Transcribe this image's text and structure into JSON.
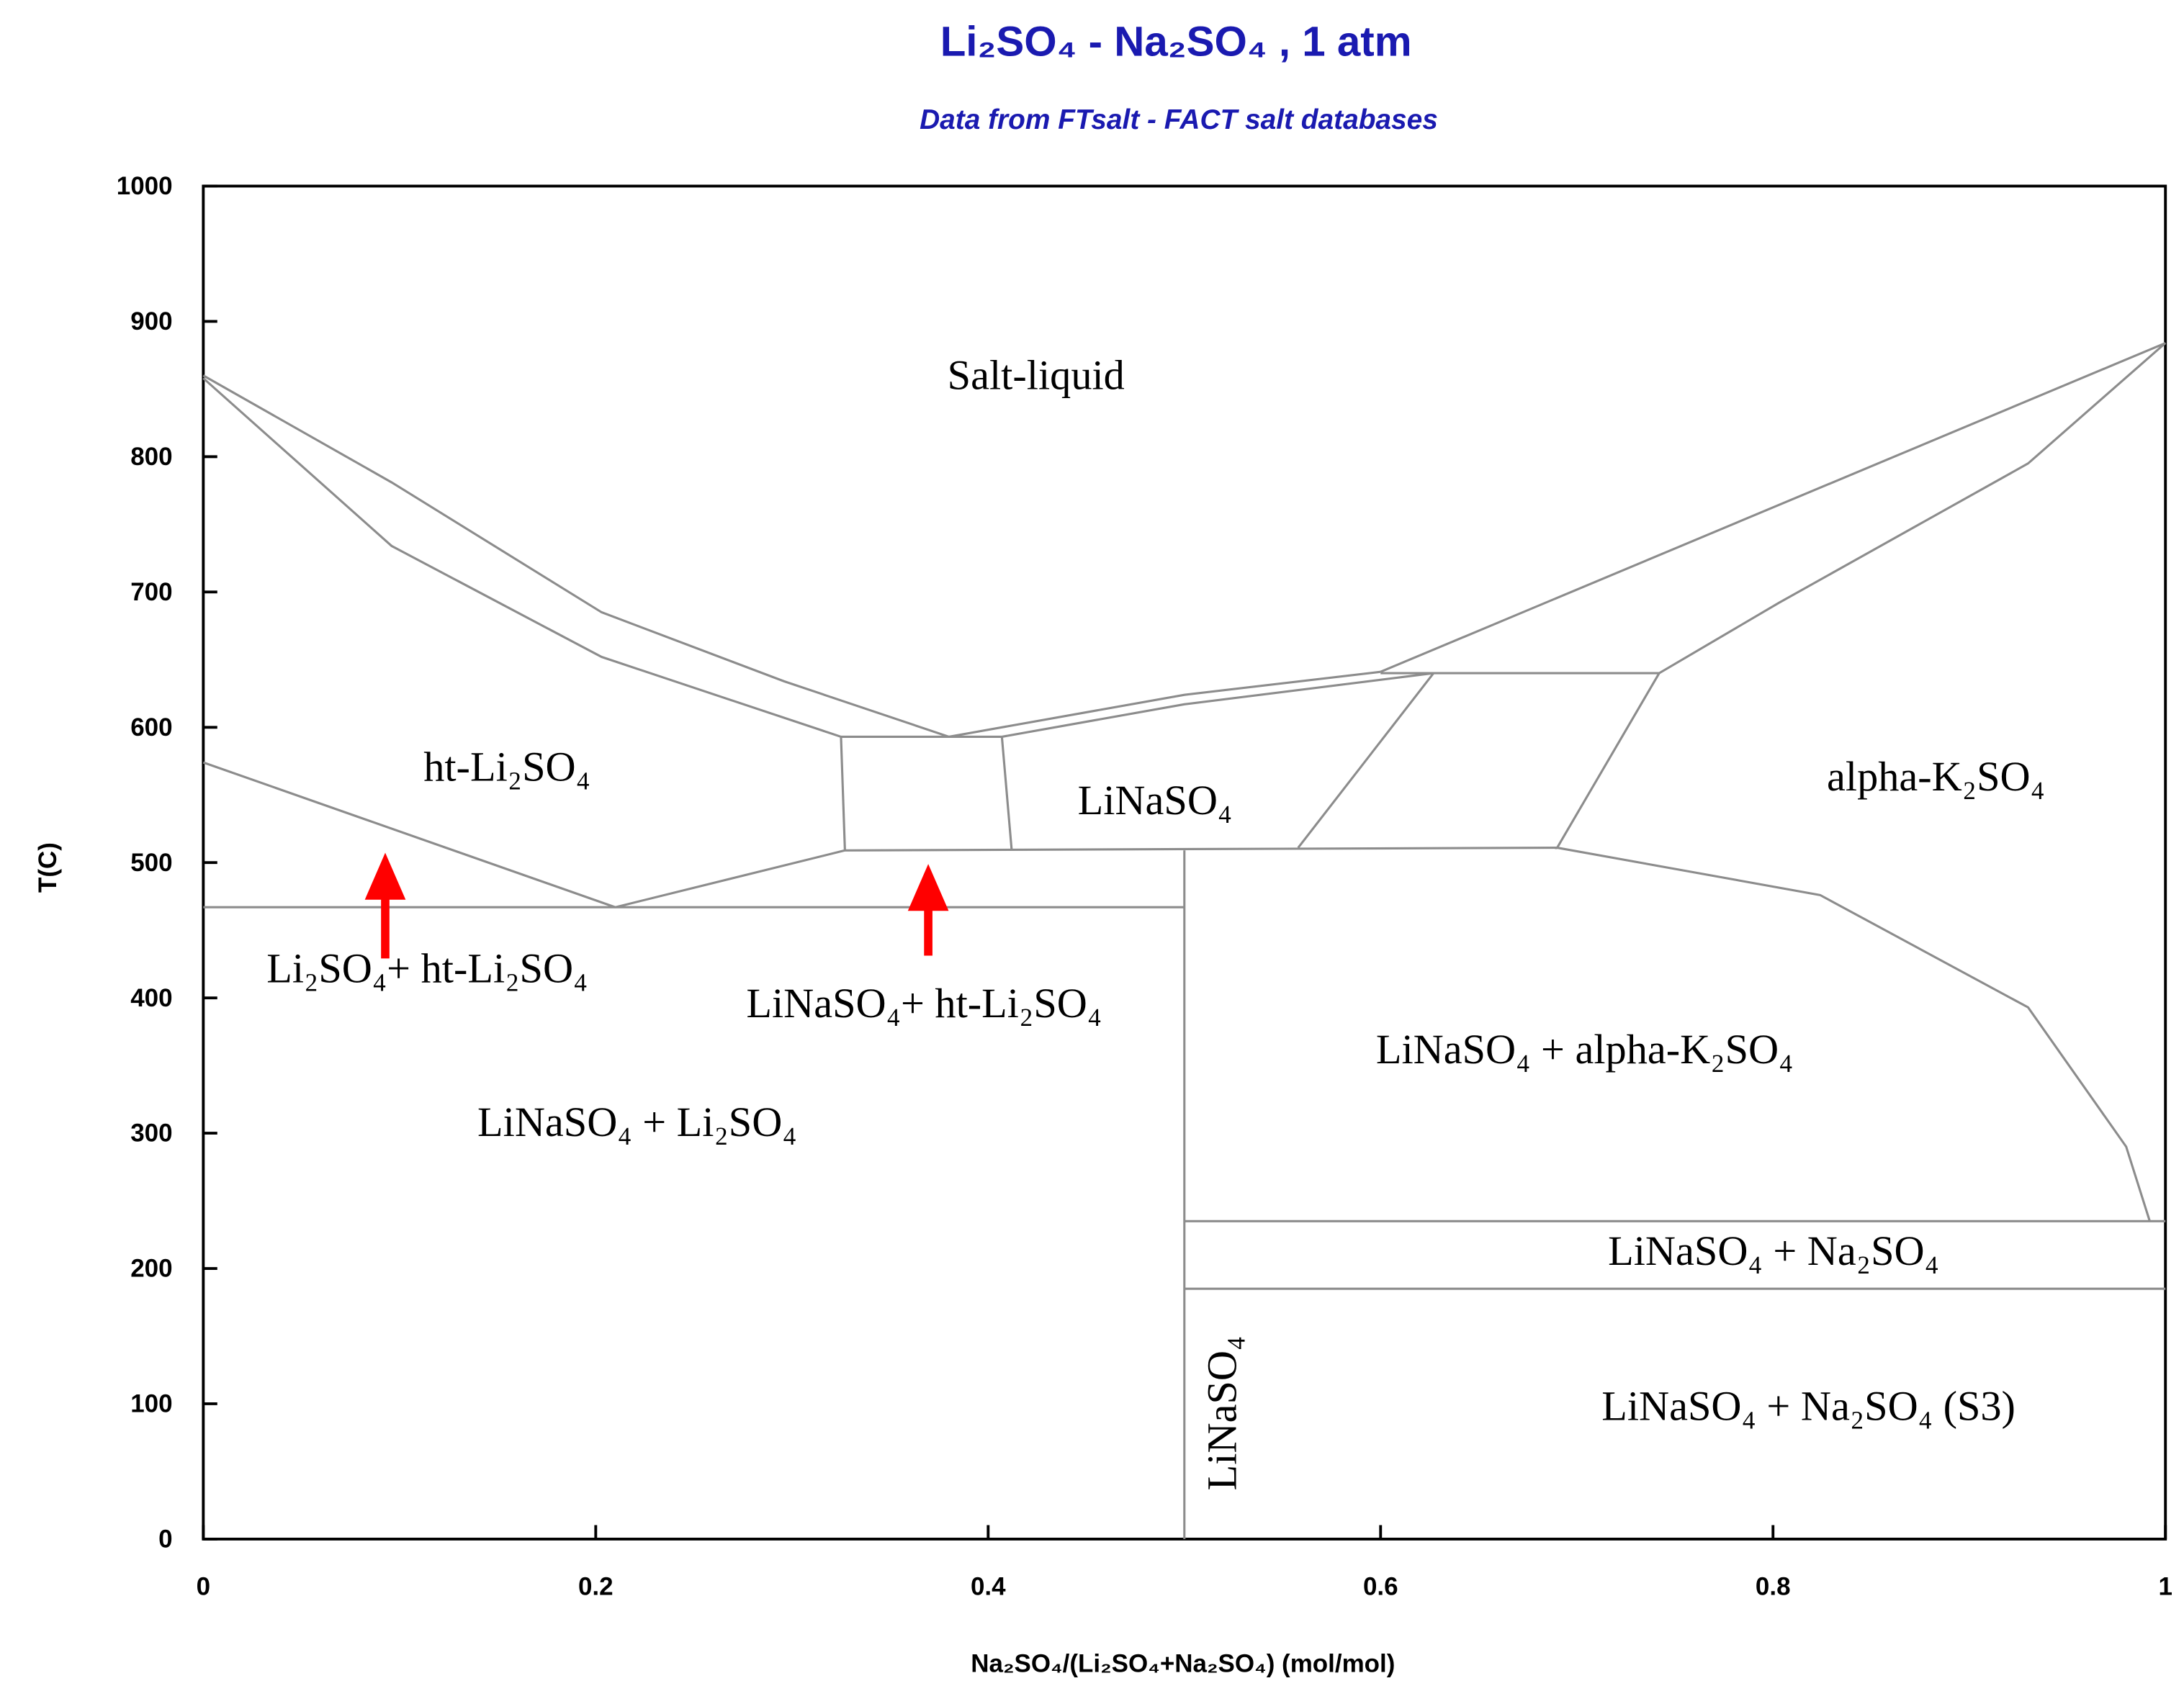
{
  "chart_data": {
    "type": "phase-diagram",
    "title": "Li₂SO₄ - Na₂SO₄ , 1 atm",
    "subtitle": "Data from FTsalt - FACT salt databases",
    "x_label": "Na₂SO₄/(Li₂SO₄+Na₂SO₄) (mol/mol)",
    "y_label": "T(C)",
    "xlim": [
      0,
      1
    ],
    "ylim": [
      0,
      1000
    ],
    "xticks": [
      0,
      0.2,
      0.4,
      0.6,
      0.8,
      1
    ],
    "yticks": [
      0,
      100,
      200,
      300,
      400,
      500,
      600,
      700,
      800,
      900,
      1000
    ],
    "line_color": "#8c8c8c",
    "boundaries": [
      {
        "x": [
          0,
          0.096,
          0.203,
          0.296,
          0.38
        ],
        "y": [
          860,
          781,
          685,
          634,
          593
        ]
      },
      {
        "x": [
          0,
          0.096,
          0.203,
          0.325
        ],
        "y": [
          858,
          734,
          652,
          593
        ]
      },
      {
        "x": [
          0.325,
          0.407
        ],
        "y": [
          593,
          593
        ]
      },
      {
        "x": [
          0.325,
          0.327
        ],
        "y": [
          593,
          509
        ]
      },
      {
        "x": [
          0.407,
          0.412
        ],
        "y": [
          593,
          509
        ]
      },
      {
        "x": [
          0.38,
          0.5,
          0.6
        ],
        "y": [
          593,
          624,
          641
        ]
      },
      {
        "x": [
          0.407,
          0.5,
          0.627
        ],
        "y": [
          593,
          617,
          640
        ]
      },
      {
        "x": [
          0.6,
          1
        ],
        "y": [
          641,
          884
        ]
      },
      {
        "x": [
          1,
          0.93,
          0.803,
          0.742
        ],
        "y": [
          884,
          795,
          692,
          640
        ]
      },
      {
        "x": [
          0.6,
          0.742
        ],
        "y": [
          640,
          640
        ]
      },
      {
        "x": [
          0.627,
          0.558
        ],
        "y": [
          640,
          511
        ]
      },
      {
        "x": [
          0.742,
          0.69
        ],
        "y": [
          640,
          511
        ]
      },
      {
        "x": [
          0.327,
          0.69
        ],
        "y": [
          509,
          511
        ]
      },
      {
        "x": [
          0,
          0.21
        ],
        "y": [
          574,
          467
        ]
      },
      {
        "x": [
          0.21,
          0.327
        ],
        "y": [
          467,
          509
        ]
      },
      {
        "x": [
          0,
          0.5
        ],
        "y": [
          467,
          467
        ]
      },
      {
        "x": [
          0.5,
          0.5
        ],
        "y": [
          509,
          0
        ]
      },
      {
        "x": [
          0.69,
          0.824,
          0.93,
          0.98,
          0.992
        ],
        "y": [
          511,
          476,
          393,
          290,
          235
        ]
      },
      {
        "x": [
          0.5,
          1
        ],
        "y": [
          235,
          235
        ]
      },
      {
        "x": [
          0.5,
          1
        ],
        "y": [
          185,
          185
        ]
      }
    ],
    "region_labels": [
      "Salt-liquid",
      "ht-Li₂SO₄",
      "LiNaSO₄",
      "alpha-K₂SO₄",
      "Li₂SO₄+ ht-Li₂SO₄",
      "LiNaSO₄+ ht-Li₂SO₄",
      "LiNaSO₄ + Li₂SO₄",
      "LiNaSO₄ + alpha-K₂SO₄",
      "LiNaSO₄ + Na₂SO₄",
      "LiNaSO₄",
      "LiNaSO₄ + Na₂SO₄ (S3)"
    ]
  }
}
